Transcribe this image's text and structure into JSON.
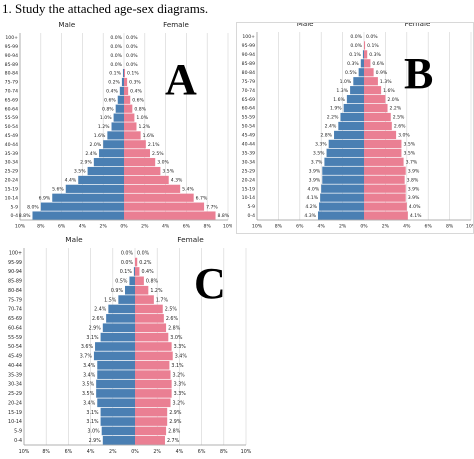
{
  "question": "1. Study the attached age-sex diagrams.",
  "colors": {
    "male": "#4a7fb3",
    "female": "#ea7f93",
    "grid": "#d3d3d3",
    "text": "#222222"
  },
  "chart_data": [
    {
      "id": "A",
      "type": "bar",
      "letter": "A",
      "male_label": "Male",
      "female_label": "Female",
      "categories": [
        "0-4",
        "5-9",
        "10-14",
        "15-19",
        "20-24",
        "25-29",
        "30-34",
        "35-39",
        "40-44",
        "45-49",
        "50-54",
        "55-59",
        "60-64",
        "65-69",
        "70-74",
        "75-79",
        "80-84",
        "85-89",
        "90-94",
        "95-99",
        "100+"
      ],
      "series": [
        {
          "name": "Male",
          "values": [
            8.8,
            8.0,
            6.9,
            5.6,
            4.4,
            3.5,
            2.9,
            2.4,
            2.0,
            1.6,
            1.2,
            1.0,
            0.8,
            0.6,
            0.4,
            0.2,
            0.1,
            0.0,
            0.0,
            0.0,
            0.0
          ]
        },
        {
          "name": "Female",
          "values": [
            8.8,
            7.7,
            6.7,
            5.4,
            4.3,
            3.5,
            3.0,
            2.5,
            2.1,
            1.6,
            1.2,
            1.0,
            0.8,
            0.6,
            0.4,
            0.3,
            0.1,
            0.0,
            0.0,
            0.0,
            0.0
          ]
        }
      ],
      "value_labels": {
        "male": [
          "8.8%",
          "8.0%",
          "6.9%",
          "5.6%",
          "4.4%",
          "3.5%",
          "2.9%",
          "2.4%",
          "2.0%",
          "1.6%",
          "1.2%",
          "1.0%",
          "0.8%",
          "0.6%",
          "0.4%",
          "0.2%",
          "0.1%",
          "0.0%",
          "0.0%",
          "0.0%",
          "0.0%"
        ],
        "female": [
          "8.8%",
          "7.7%",
          "6.7%",
          "5.4%",
          "4.3%",
          "3.5%",
          "3.0%",
          "2.5%",
          "2.1%",
          "1.6%",
          "1.2%",
          "1.0%",
          "0.8%",
          "0.6%",
          "0.4%",
          "0.3%",
          "0.1%",
          "0.0%",
          "0.0%",
          "0.0%",
          "0.0%"
        ]
      },
      "xticks": [
        "10%",
        "8%",
        "6%",
        "4%",
        "2%",
        "0%",
        "2%",
        "4%",
        "6%",
        "8%",
        "10%"
      ],
      "xlim": [
        -10,
        10
      ]
    },
    {
      "id": "B",
      "type": "bar",
      "letter": "B",
      "male_label": "Male",
      "female_label": "Female",
      "categories": [
        "0-4",
        "5-9",
        "10-14",
        "15-19",
        "20-24",
        "25-29",
        "30-34",
        "35-39",
        "40-44",
        "45-49",
        "50-54",
        "55-59",
        "60-64",
        "65-69",
        "70-74",
        "75-79",
        "80-84",
        "85-89",
        "90-94",
        "95-99",
        "100+"
      ],
      "series": [
        {
          "name": "Male",
          "values": [
            4.3,
            4.2,
            4.1,
            4.0,
            3.9,
            3.9,
            3.7,
            3.5,
            3.3,
            2.8,
            2.4,
            2.2,
            1.9,
            1.6,
            1.3,
            1.0,
            0.5,
            0.3,
            0.1,
            0.0,
            0.0
          ]
        },
        {
          "name": "Female",
          "values": [
            4.1,
            4.0,
            3.9,
            3.9,
            3.8,
            3.9,
            3.7,
            3.5,
            3.5,
            3.0,
            2.6,
            2.5,
            2.2,
            2.0,
            1.6,
            1.3,
            0.9,
            0.6,
            0.3,
            0.1,
            0.0
          ]
        }
      ],
      "value_labels": {
        "male": [
          "4.3%",
          "4.2%",
          "4.1%",
          "4.0%",
          "3.9%",
          "3.9%",
          "3.7%",
          "3.5%",
          "3.3%",
          "2.8%",
          "2.4%",
          "2.2%",
          "1.9%",
          "1.6%",
          "1.3%",
          "1.0%",
          "0.5%",
          "0.3%",
          "0.1%",
          "0.0%",
          "0.0%"
        ],
        "female": [
          "4.1%",
          "4.0%",
          "3.9%",
          "3.9%",
          "3.8%",
          "3.9%",
          "3.7%",
          "3.5%",
          "3.5%",
          "3.0%",
          "2.6%",
          "2.5%",
          "2.2%",
          "2.0%",
          "1.6%",
          "1.3%",
          "0.9%",
          "0.6%",
          "0.3%",
          "0.1%",
          "0.0%"
        ]
      },
      "xticks": [
        "10%",
        "8%",
        "6%",
        "4%",
        "2%",
        "0%",
        "2%",
        "4%",
        "6%",
        "8%",
        "10%"
      ],
      "xlim": [
        -10,
        10
      ]
    },
    {
      "id": "C",
      "type": "bar",
      "letter": "C",
      "male_label": "Male",
      "female_label": "Female",
      "categories": [
        "0-4",
        "5-9",
        "10-14",
        "15-19",
        "20-24",
        "25-29",
        "30-34",
        "35-39",
        "40-44",
        "45-49",
        "50-54",
        "55-59",
        "60-64",
        "65-69",
        "70-74",
        "75-79",
        "80-84",
        "85-89",
        "90-94",
        "95-99",
        "100+"
      ],
      "series": [
        {
          "name": "Male",
          "values": [
            2.9,
            3.0,
            3.1,
            3.1,
            3.4,
            3.5,
            3.5,
            3.4,
            3.4,
            3.7,
            3.6,
            3.1,
            2.9,
            2.6,
            2.4,
            1.5,
            0.9,
            0.5,
            0.1,
            0.0,
            0.0
          ]
        },
        {
          "name": "Female",
          "values": [
            2.7,
            2.8,
            2.9,
            2.9,
            3.2,
            3.3,
            3.3,
            3.2,
            3.1,
            3.4,
            3.3,
            3.0,
            2.8,
            2.6,
            2.5,
            1.7,
            1.2,
            0.8,
            0.4,
            0.2,
            0.0
          ]
        }
      ],
      "value_labels": {
        "male": [
          "2.9%",
          "3.0%",
          "3.1%",
          "3.1%",
          "3.4%",
          "3.5%",
          "3.5%",
          "3.4%",
          "3.4%",
          "3.7%",
          "3.6%",
          "3.1%",
          "2.9%",
          "2.6%",
          "2.4%",
          "1.5%",
          "0.9%",
          "0.5%",
          "0.1%",
          "0.0%",
          "0.0%"
        ],
        "female": [
          "2.7%",
          "2.8%",
          "2.9%",
          "2.9%",
          "3.2%",
          "3.3%",
          "3.3%",
          "3.2%",
          "3.1%",
          "3.4%",
          "3.3%",
          "3.0%",
          "2.8%",
          "2.6%",
          "2.5%",
          "1.7%",
          "1.2%",
          "0.8%",
          "0.4%",
          "0.2%",
          "0.0%"
        ]
      },
      "xticks": [
        "10%",
        "8%",
        "6%",
        "4%",
        "2%",
        "0%",
        "2%",
        "4%",
        "6%",
        "8%",
        "10%"
      ],
      "xlim": [
        -10,
        10
      ]
    }
  ]
}
